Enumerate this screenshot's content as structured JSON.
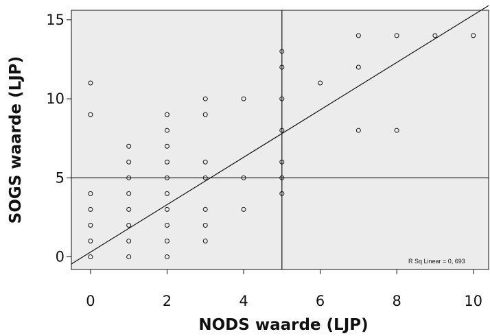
{
  "chart_data": {
    "type": "scatter",
    "xlabel": "NODS waarde (LJP)",
    "ylabel": "SOGS waarde (LJP)",
    "xlim": [
      -0.5,
      10.4
    ],
    "ylim": [
      -0.8,
      15.6
    ],
    "xticks": [
      0,
      2,
      4,
      6,
      8,
      10
    ],
    "yticks": [
      0,
      5,
      10,
      15
    ],
    "annotation": "R Sq Linear = 0, 693",
    "grid": false,
    "reference_lines": {
      "x": 5,
      "y": 5
    },
    "fit_line": {
      "type": "linear",
      "slope": 1.5,
      "intercept": 0.3
    },
    "points": [
      [
        0,
        0
      ],
      [
        0,
        1
      ],
      [
        0,
        2
      ],
      [
        0,
        3
      ],
      [
        0,
        4
      ],
      [
        0,
        9
      ],
      [
        0,
        11
      ],
      [
        1,
        0
      ],
      [
        1,
        1
      ],
      [
        1,
        2
      ],
      [
        1,
        3
      ],
      [
        1,
        4
      ],
      [
        1,
        5
      ],
      [
        1,
        6
      ],
      [
        1,
        7
      ],
      [
        2,
        0
      ],
      [
        2,
        1
      ],
      [
        2,
        2
      ],
      [
        2,
        3
      ],
      [
        2,
        4
      ],
      [
        2,
        5
      ],
      [
        2,
        6
      ],
      [
        2,
        7
      ],
      [
        2,
        8
      ],
      [
        2,
        9
      ],
      [
        3,
        1
      ],
      [
        3,
        2
      ],
      [
        3,
        3
      ],
      [
        3,
        5
      ],
      [
        3,
        6
      ],
      [
        3,
        9
      ],
      [
        3,
        10
      ],
      [
        4,
        3
      ],
      [
        4,
        5
      ],
      [
        4,
        10
      ],
      [
        5,
        4
      ],
      [
        5,
        5
      ],
      [
        5,
        6
      ],
      [
        5,
        8
      ],
      [
        5,
        10
      ],
      [
        5,
        12
      ],
      [
        5,
        13
      ],
      [
        6,
        11
      ],
      [
        7,
        8
      ],
      [
        7,
        12
      ],
      [
        7,
        14
      ],
      [
        8,
        8
      ],
      [
        8,
        14
      ],
      [
        9,
        14
      ],
      [
        10,
        14
      ]
    ]
  },
  "colors": {
    "plot_bg": "#ececec",
    "ink": "#111111",
    "page_bg": "#ffffff"
  }
}
